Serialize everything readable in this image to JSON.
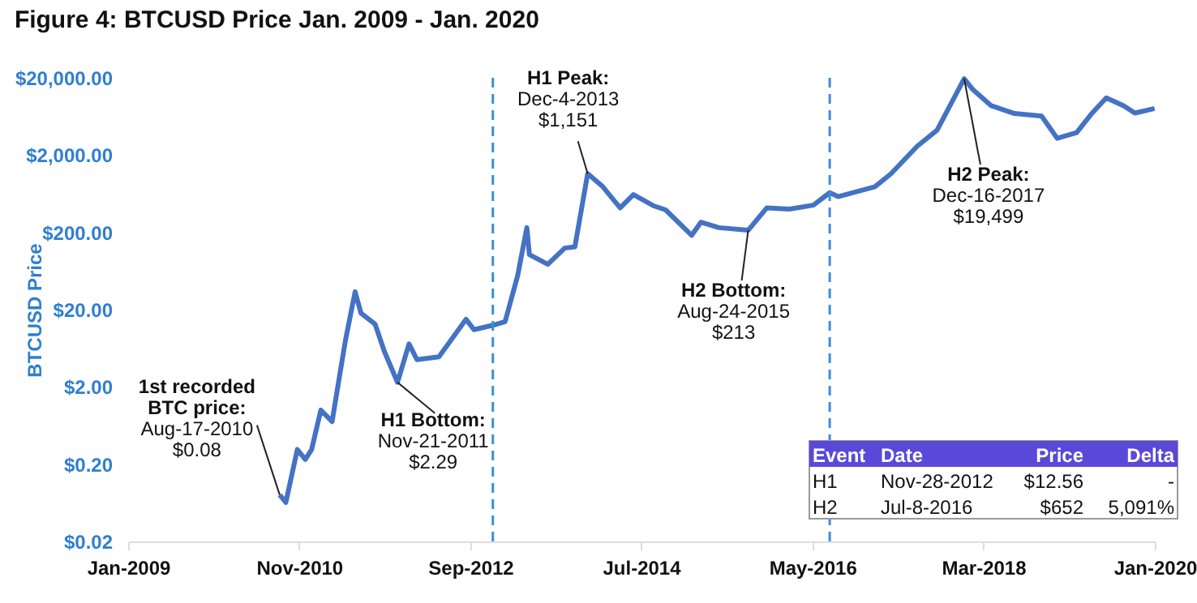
{
  "chart_data": {
    "type": "line",
    "title": "Figure 4: BTCUSD Price Jan. 2009 - Jan. 2020",
    "ylabel": "BTCUSD Price",
    "x": [
      "2010-08-17",
      "2010-09-10",
      "2010-10-25",
      "2010-11-25",
      "2010-12-20",
      "2011-01-25",
      "2011-03-10",
      "2011-04-10",
      "2011-05-01",
      "2011-06-08",
      "2011-07-01",
      "2011-08-25",
      "2011-10-01",
      "2011-11-21",
      "2012-01-05",
      "2012-02-05",
      "2012-05-01",
      "2012-08-15",
      "2012-09-15",
      "2012-11-28",
      "2013-01-15",
      "2013-03-05",
      "2013-04-10",
      "2013-04-20",
      "2013-07-01",
      "2013-09-05",
      "2013-10-15",
      "2013-12-04",
      "2014-02-01",
      "2014-04-10",
      "2014-06-01",
      "2014-08-20",
      "2014-10-05",
      "2015-01-15",
      "2015-02-20",
      "2015-05-01",
      "2015-08-24",
      "2015-11-05",
      "2016-02-01",
      "2016-05-05",
      "2016-07-08",
      "2016-08-10",
      "2017-01-01",
      "2017-03-05",
      "2017-06-15",
      "2017-09-01",
      "2017-12-16",
      "2018-01-20",
      "2018-04-01",
      "2018-07-01",
      "2018-10-15",
      "2018-12-15",
      "2019-03-01",
      "2019-05-01",
      "2019-06-25",
      "2019-09-01",
      "2019-10-15",
      "2019-12-31"
    ],
    "series": [
      {
        "color": "#4472c4",
        "values": [
          0.08,
          0.064,
          0.31,
          0.23,
          0.31,
          1.0,
          0.71,
          3.0,
          7.9,
          34,
          18,
          13,
          5.7,
          2.29,
          7.2,
          4.5,
          4.9,
          15,
          11,
          12.56,
          14,
          55,
          230,
          103,
          77,
          125,
          130,
          1151,
          780,
          415,
          615,
          440,
          390,
          183,
          270,
          230,
          213,
          415,
          400,
          450,
          652,
          580,
          780,
          1150,
          2600,
          4200,
          19499,
          14000,
          8700,
          6900,
          6400,
          3300,
          3900,
          7000,
          11000,
          8700,
          7000,
          8000
        ]
      }
    ],
    "log": "y",
    "ylim": [
      0.02,
      20000
    ],
    "yticks": [
      {
        "value": 0.02,
        "label": "$0.02"
      },
      {
        "value": 0.2,
        "label": "$0.20"
      },
      {
        "value": 2,
        "label": "$2.00"
      },
      {
        "value": 20,
        "label": "$20.00"
      },
      {
        "value": 200,
        "label": "$200.00"
      },
      {
        "value": 2000,
        "label": "$2,000.00"
      },
      {
        "value": 20000,
        "label": "$20,000.00"
      }
    ],
    "xlim": [
      "2009-01-01",
      "2020-01-01"
    ],
    "xticks": [
      {
        "value": "2009-01-01",
        "label": "Jan-2009"
      },
      {
        "value": "2010-11-01",
        "label": "Nov-2010"
      },
      {
        "value": "2012-09-01",
        "label": "Sep-2012"
      },
      {
        "value": "2014-07-01",
        "label": "Jul-2014"
      },
      {
        "value": "2016-05-01",
        "label": "May-2016"
      },
      {
        "value": "2018-03-01",
        "label": "Mar-2018"
      },
      {
        "value": "2020-01-01",
        "label": "Jan-2020"
      }
    ],
    "grid": false,
    "line_style": "solid",
    "marker": "none",
    "ref_lines": [
      {
        "axis": "x",
        "value": "2012-11-28",
        "color": "#3a8fd9",
        "line_style": "dashed"
      },
      {
        "axis": "x",
        "value": "2016-07-08",
        "color": "#3a8fd9",
        "line_style": "dashed"
      }
    ],
    "annotations": [
      {
        "text": "1st recorded\nBTC price:\nAug-17-2010\n$0.08",
        "x": "2010-08-17",
        "y": 0.08
      },
      {
        "text": "H1 Bottom:\nNov-21-2011\n$2.29",
        "x": "2011-11-21",
        "y": 2.29
      },
      {
        "text": "H1 Peak:\nDec-4-2013\n$1,151",
        "x": "2013-12-04",
        "y": 1151
      },
      {
        "text": "H2 Bottom:\nAug-24-2015\n$213",
        "x": "2015-08-24",
        "y": 213
      },
      {
        "text": "H2 Peak:\nDec-16-2017\n$19,499",
        "x": "2017-12-16",
        "y": 19499
      },
      "Event",
      "Date",
      "Price",
      "Delta",
      "H1",
      "Nov-28-2012",
      "$12.56",
      "-",
      "H2",
      "Jul-8-2016",
      "$652",
      "5,091%"
    ]
  }
}
